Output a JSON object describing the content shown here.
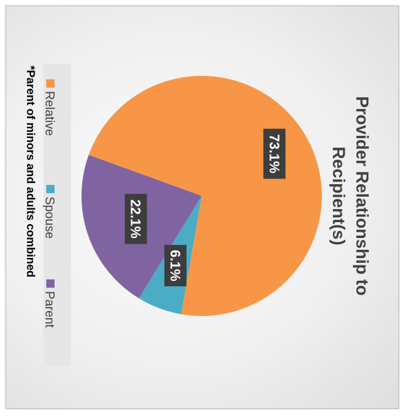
{
  "chart_data": {
    "type": "pie",
    "title": "Provider Relationship to Recipient(s)",
    "title_lines": [
      "Provider Relationship to",
      "Recipient(s)"
    ],
    "categories": [
      "Relative",
      "Spouse",
      "Parent"
    ],
    "values": [
      73.1,
      6.1,
      22.1
    ],
    "labels": [
      "73.1%",
      "6.1%",
      "22.1%"
    ],
    "colors": [
      "#f79646",
      "#4bacc6",
      "#8064a2"
    ],
    "legend_position": "bottom",
    "orientation": "rotated 90 degrees clockwise"
  },
  "footnote": "*Parent of minors and adults combined"
}
